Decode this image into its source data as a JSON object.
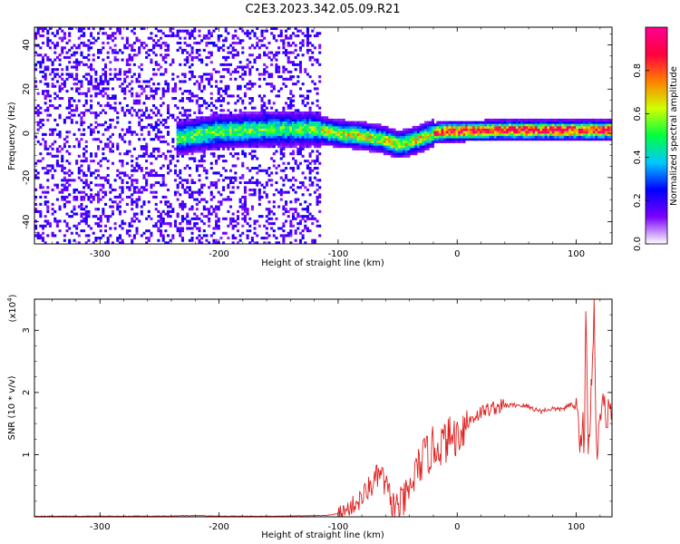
{
  "figure": {
    "title": "C2E3.2023.342.05.09.R21"
  },
  "chart_data": [
    {
      "type": "heatmap",
      "title": "C2E3.2023.342.05.09.R21",
      "xlabel": "Height of straight line (km)",
      "ylabel": "Frequency (Hz)",
      "xlim": [
        -355,
        130
      ],
      "ylim": [
        -50,
        48
      ],
      "x_ticks": [
        -300,
        -200,
        -100,
        0,
        100
      ],
      "y_ticks": [
        -40,
        -20,
        0,
        20,
        40
      ],
      "colorbar": {
        "label": "Normalized spectral amplitude",
        "range": [
          0,
          1
        ],
        "ticks": [
          0.0,
          0.2,
          0.4,
          0.6,
          0.8
        ],
        "colormap": "rainbow (violet-blue-cyan-green-yellow-red-magenta)",
        "colors": [
          "#ffffff",
          "#7a00ff",
          "#0000ff",
          "#00c8ff",
          "#00ff40",
          "#d0ff00",
          "#ff8000",
          "#ff0040",
          "#ff0090"
        ]
      },
      "regions": [
        {
          "x_range": [
            -355,
            -115
          ],
          "description": "broadband noise across all frequencies",
          "amplitude": 0.05
        },
        {
          "x_range": [
            -235,
            -115
          ],
          "freq_center": 1,
          "freq_width": 10,
          "amplitude": 0.45
        },
        {
          "x_range": [
            -115,
            -20
          ],
          "freq_center": -2,
          "freq_width": 8,
          "amplitude": 0.55
        },
        {
          "x_range": [
            -20,
            130
          ],
          "freq_center": 1,
          "freq_width": 6,
          "amplitude": 0.85
        }
      ],
      "ridge_center": {
        "x": [
          -235,
          -200,
          -150,
          -120,
          -100,
          -80,
          -60,
          -50,
          -40,
          -30,
          -20,
          -10,
          0,
          40,
          80,
          130
        ],
        "y": [
          -2,
          1,
          2,
          2,
          0,
          -1,
          -3,
          -5,
          -4,
          -2,
          0,
          1,
          1,
          1.5,
          1.5,
          1.5
        ]
      }
    },
    {
      "type": "line",
      "xlabel": "Height of straight line (km)",
      "ylabel": "SNR (10 * v/v)",
      "y_multiplier": "(x10",
      "y_multiplier_exp": "4",
      "y_multiplier_close": ")",
      "xlim": [
        -355,
        130
      ],
      "ylim": [
        0,
        3.5
      ],
      "x_ticks": [
        -300,
        -200,
        -100,
        0,
        100
      ],
      "y_ticks": [
        1,
        2,
        3
      ],
      "series": [
        {
          "color": "#e02020",
          "x": [
            -355,
            -300,
            -250,
            -220,
            -200,
            -150,
            -110,
            -100,
            -95,
            -90,
            -85,
            -80,
            -75,
            -70,
            -65,
            -60,
            -55,
            -50,
            -45,
            -40,
            -35,
            -30,
            -25,
            -20,
            -15,
            -10,
            -5,
            0,
            5,
            10,
            15,
            20,
            25,
            30,
            35,
            40,
            45,
            50,
            55,
            60,
            65,
            70,
            75,
            80,
            85,
            90,
            95,
            100,
            103,
            105,
            107,
            108,
            110,
            112,
            113,
            115,
            117,
            120,
            125,
            130
          ],
          "y": [
            0.01,
            0.01,
            0.01,
            0.02,
            0.01,
            0.01,
            0.02,
            0.05,
            0.08,
            0.15,
            0.22,
            0.3,
            0.45,
            0.55,
            0.7,
            0.5,
            0.2,
            0.15,
            0.25,
            0.4,
            0.7,
            0.9,
            1.0,
            1.1,
            1.15,
            1.2,
            1.3,
            1.3,
            1.45,
            1.55,
            1.62,
            1.68,
            1.72,
            1.75,
            1.77,
            1.79,
            1.79,
            1.8,
            1.79,
            1.77,
            1.73,
            1.7,
            1.72,
            1.74,
            1.72,
            1.75,
            1.8,
            1.75,
            1.3,
            1.5,
            1.2,
            3.3,
            1.0,
            1.8,
            2.2,
            3.5,
            1.0,
            1.75,
            1.7,
            1.68
          ]
        }
      ]
    }
  ]
}
